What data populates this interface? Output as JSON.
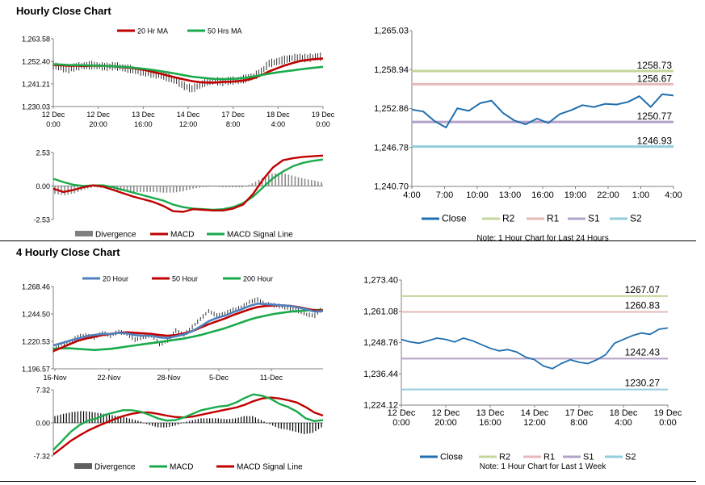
{
  "sections": {
    "hourly_title": "Hourly Close Chart",
    "four_hourly_title": "4 Hourly Close Chart"
  },
  "chart_data": [
    {
      "id": "hourly_price",
      "type": "line",
      "legend": [
        "20 Hr MA",
        "50 Hrs MA"
      ],
      "colors": {
        "price": "#000000",
        "ma1": "#c00000",
        "ma2": "#1aaa4b"
      },
      "y_ticks": [
        "1,263.58",
        "1,252.40",
        "1,241.21",
        "1,230.03"
      ],
      "ylim": [
        1230.03,
        1263.58
      ],
      "x_ticks": [
        [
          "12 Dec",
          "0:00"
        ],
        [
          "12 Dec",
          "20:00"
        ],
        [
          "13 Dec",
          "16:00"
        ],
        [
          "14 Dec",
          "12:00"
        ],
        [
          "17 Dec",
          "8:00"
        ],
        [
          "18 Dec",
          "4:00"
        ],
        [
          "19 Dec",
          "0:00"
        ]
      ],
      "price": [
        1250.5,
        1249.3,
        1248.5,
        1249.8,
        1250.2,
        1250.6,
        1250.0,
        1249.7,
        1250.1,
        1249.2,
        1248.6,
        1247.5,
        1246.9,
        1246.1,
        1245.4,
        1244.3,
        1242.6,
        1240.2,
        1238.8,
        1240.6,
        1242.4,
        1242.7,
        1242.2,
        1242.9,
        1242.9,
        1243.9,
        1245.0,
        1247.2,
        1251.4,
        1252.2,
        1253.2,
        1254.0,
        1254.1,
        1254.0,
        1254.6,
        1254.7
      ],
      "ma1": [
        1250.6,
        1250.4,
        1250.2,
        1250.2,
        1250.1,
        1250.2,
        1250.2,
        1250.1,
        1249.9,
        1249.5,
        1249.2,
        1248.7,
        1248.0,
        1247.1,
        1246.2,
        1245.2,
        1244.3,
        1243.4,
        1242.6,
        1242.1,
        1241.9,
        1241.9,
        1242.2,
        1242.3,
        1242.6,
        1243.1,
        1244.0,
        1245.6,
        1247.4,
        1248.9,
        1250.3,
        1251.5,
        1252.5,
        1253.1,
        1253.5,
        1253.8
      ],
      "ma2": [
        1250.9,
        1250.8,
        1250.6,
        1250.5,
        1250.4,
        1250.3,
        1250.2,
        1250.1,
        1249.9,
        1249.7,
        1249.4,
        1249.0,
        1248.6,
        1248.1,
        1247.5,
        1246.9,
        1246.2,
        1245.5,
        1244.8,
        1244.4,
        1244.0,
        1243.7,
        1243.6,
        1243.7,
        1243.9,
        1244.3,
        1244.9,
        1245.6,
        1246.3,
        1246.9,
        1247.4,
        1247.9,
        1248.4,
        1248.9,
        1249.3,
        1249.7
      ]
    },
    {
      "id": "hourly_macd",
      "type": "line",
      "legend": [
        "Divergence",
        "MACD",
        "MACD Signal Line"
      ],
      "colors": {
        "divergence": "#8c8c8c",
        "macd": "#c00000",
        "signal": "#1aaa4b"
      },
      "y_ticks": [
        "2.53",
        "0.00",
        "-2.53"
      ],
      "ylim": [
        -2.53,
        2.53
      ],
      "macd": [
        -0.2,
        -0.45,
        -0.3,
        -0.1,
        0.05,
        -0.05,
        -0.3,
        -0.55,
        -0.8,
        -1.0,
        -1.2,
        -1.5,
        -1.9,
        -1.95,
        -1.75,
        -1.8,
        -1.85,
        -1.85,
        -1.7,
        -1.4,
        -0.6,
        0.5,
        1.4,
        1.95,
        2.1,
        2.2,
        2.25,
        2.3
      ],
      "signal": [
        0.55,
        0.3,
        0.1,
        0.0,
        0.05,
        0.05,
        -0.1,
        -0.3,
        -0.5,
        -0.7,
        -0.9,
        -1.1,
        -1.4,
        -1.6,
        -1.7,
        -1.75,
        -1.8,
        -1.75,
        -1.6,
        -1.3,
        -0.8,
        -0.1,
        0.6,
        1.1,
        1.5,
        1.75,
        1.9,
        2.0
      ],
      "divergence": [
        -0.6,
        -0.7,
        -0.55,
        -0.25,
        -0.1,
        -0.15,
        -0.3,
        -0.4,
        -0.45,
        -0.45,
        -0.45,
        -0.5,
        -0.5,
        -0.4,
        -0.2,
        -0.1,
        -0.05,
        -0.1,
        -0.1,
        -0.1,
        0.2,
        0.6,
        0.95,
        1.0,
        0.8,
        0.6,
        0.45,
        0.3
      ]
    },
    {
      "id": "hourly_pivot",
      "type": "line",
      "legend": [
        "Close",
        "R2",
        "R1",
        "S1",
        "S2"
      ],
      "colors": {
        "close": "#1f6fb0",
        "R2": "#c3d69b",
        "R1": "#e6b9b8",
        "S1": "#b3a2c7",
        "S2": "#93cddd"
      },
      "y_ticks": [
        "1,265.03",
        "1,258.94",
        "1,252.86",
        "1,246.78",
        "1,240.70"
      ],
      "ylim": [
        1240.7,
        1265.03
      ],
      "x_ticks": [
        "4:00",
        "7:00",
        "10:00",
        "13:00",
        "16:00",
        "19:00",
        "22:00",
        "1:00",
        "4:00"
      ],
      "levels": {
        "R2": 1258.73,
        "R1": 1256.67,
        "S1": 1250.77,
        "S2": 1246.93
      },
      "level_labels": {
        "R2": "1258.73",
        "R1": "1256.67",
        "S1": "1250.77",
        "S2": "1246.93"
      },
      "close": [
        1252.7,
        1252.4,
        1250.9,
        1249.9,
        1252.9,
        1252.5,
        1253.7,
        1254.1,
        1252.2,
        1251.0,
        1250.4,
        1251.3,
        1250.6,
        1252.0,
        1252.6,
        1253.4,
        1253.1,
        1253.6,
        1253.5,
        1253.9,
        1254.8,
        1253.1,
        1255.1,
        1254.9
      ],
      "note": "Note: 1 Hour Chart for Last 24 Hours"
    },
    {
      "id": "four_hourly_price",
      "type": "line",
      "legend": [
        "20 Hour",
        "50 Hour",
        "200 Hour"
      ],
      "colors": {
        "price": "#000000",
        "ma20": "#4f81bd",
        "ma50": "#c00000",
        "ma200": "#1aaa4b"
      },
      "y_ticks": [
        "1,268.46",
        "1,244.50",
        "1,220.53",
        "1,196.57"
      ],
      "ylim": [
        1196.57,
        1268.46
      ],
      "x_ticks": [
        "16-Nov",
        "22-Nov",
        "28-Nov",
        "5-Dec",
        "11-Dec"
      ],
      "price": [
        1213.0,
        1218.0,
        1220.0,
        1224.5,
        1226.0,
        1224.0,
        1228.0,
        1225.5,
        1229.0,
        1227.0,
        1222.0,
        1224.0,
        1226.0,
        1218.0,
        1221.0,
        1230.0,
        1226.0,
        1233.0,
        1240.0,
        1247.0,
        1243.0,
        1245.0,
        1248.0,
        1250.0,
        1255.0,
        1257.0,
        1253.0,
        1252.0,
        1251.0,
        1249.0,
        1247.0,
        1244.0,
        1243.0,
        1250.0
      ],
      "ma20": [
        1217.0,
        1219.0,
        1221.0,
        1223.0,
        1225.0,
        1226.0,
        1227.0,
        1227.0,
        1228.0,
        1227.5,
        1226.0,
        1225.5,
        1225.5,
        1224.0,
        1223.5,
        1225.0,
        1226.5,
        1229.5,
        1233.5,
        1238.0,
        1241.0,
        1243.0,
        1246.0,
        1248.5,
        1251.5,
        1253.5,
        1253.0,
        1252.5,
        1252.0,
        1251.5,
        1250.0,
        1248.5,
        1246.5,
        1247.0
      ],
      "ma50": [
        1212.0,
        1215.0,
        1218.0,
        1221.0,
        1223.0,
        1224.5,
        1226.0,
        1227.0,
        1228.0,
        1228.5,
        1228.0,
        1227.5,
        1227.0,
        1226.0,
        1225.5,
        1226.0,
        1227.5,
        1229.5,
        1232.5,
        1235.5,
        1238.0,
        1240.5,
        1243.5,
        1246.0,
        1248.5,
        1250.5,
        1251.5,
        1252.0,
        1252.0,
        1251.5,
        1250.5,
        1249.0,
        1247.5,
        1247.5
      ],
      "ma200": [
        1214.0,
        1214.5,
        1214.5,
        1214.0,
        1213.5,
        1213.0,
        1213.5,
        1214.0,
        1215.0,
        1216.0,
        1217.0,
        1218.0,
        1219.0,
        1220.0,
        1221.0,
        1222.0,
        1223.0,
        1224.5,
        1226.0,
        1228.0,
        1230.0,
        1232.0,
        1234.5,
        1237.0,
        1239.5,
        1241.5,
        1243.0,
        1244.5,
        1245.5,
        1246.5,
        1247.0,
        1247.5,
        1248.0,
        1248.0
      ]
    },
    {
      "id": "four_hourly_macd",
      "type": "line",
      "legend": [
        "Divergence",
        "MACD",
        "MACD Signal Line"
      ],
      "colors": {
        "divergence": "#000000",
        "macd": "#1aaa4b",
        "signal": "#c00000"
      },
      "y_ticks": [
        "7.32",
        "0.00",
        "-7.32"
      ],
      "ylim": [
        -7.32,
        7.32
      ],
      "macd": [
        -6.0,
        -4.0,
        -2.0,
        -0.5,
        0.5,
        1.0,
        1.8,
        2.3,
        2.8,
        2.8,
        2.5,
        1.8,
        1.0,
        0.5,
        0.6,
        1.2,
        2.0,
        2.8,
        3.2,
        3.6,
        3.8,
        4.5,
        5.5,
        6.3,
        6.0,
        5.3,
        4.2,
        3.5,
        2.5,
        1.0,
        0.4,
        0.6
      ],
      "signal": [
        -7.0,
        -5.5,
        -4.0,
        -2.8,
        -1.7,
        -0.8,
        0.0,
        0.8,
        1.5,
        2.0,
        2.3,
        2.3,
        2.0,
        1.6,
        1.3,
        1.2,
        1.4,
        1.8,
        2.2,
        2.6,
        3.0,
        3.4,
        4.0,
        4.8,
        5.4,
        5.6,
        5.4,
        5.0,
        4.5,
        3.5,
        2.3,
        1.6
      ],
      "divergence": [
        1.5,
        2.0,
        2.4,
        2.6,
        2.5,
        2.2,
        1.9,
        1.6,
        1.3,
        0.8,
        0.3,
        -0.5,
        -1.0,
        -1.0,
        -0.6,
        0.1,
        0.6,
        1.0,
        1.0,
        1.0,
        0.8,
        1.0,
        1.5,
        1.5,
        0.6,
        -0.3,
        -1.2,
        -1.5,
        -2.0,
        -2.5,
        -2.2,
        -1.0
      ]
    },
    {
      "id": "four_hourly_pivot",
      "type": "line",
      "legend": [
        "Close",
        "R2",
        "R1",
        "S1",
        "S2"
      ],
      "colors": {
        "close": "#1f6fb0",
        "R2": "#c3d69b",
        "R1": "#e6b9b8",
        "S1": "#b3a2c7",
        "S2": "#93cddd"
      },
      "y_ticks": [
        "1,273.40",
        "1,261.08",
        "1,248.76",
        "1,236.44",
        "1,224.12"
      ],
      "ylim": [
        1224.12,
        1273.4
      ],
      "x_ticks": [
        [
          "12 Dec",
          "0:00"
        ],
        [
          "12 Dec",
          "20:00"
        ],
        [
          "13 Dec",
          "16:00"
        ],
        [
          "14 Dec",
          "12:00"
        ],
        [
          "17 Dec",
          "8:00"
        ],
        [
          "18 Dec",
          "4:00"
        ],
        [
          "19 Dec",
          "0:00"
        ]
      ],
      "levels": {
        "R2": 1267.07,
        "R1": 1260.83,
        "S1": 1242.43,
        "S2": 1230.27
      },
      "level_labels": {
        "R2": "1267.07",
        "R1": "1260.83",
        "S1": "1242.43",
        "S2": "1230.27"
      },
      "close": [
        1250.0,
        1249.0,
        1248.5,
        1249.5,
        1250.5,
        1250.0,
        1249.0,
        1250.5,
        1249.5,
        1248.0,
        1246.5,
        1245.5,
        1246.0,
        1245.0,
        1243.0,
        1242.0,
        1239.5,
        1238.5,
        1240.5,
        1242.0,
        1241.0,
        1240.5,
        1242.0,
        1244.0,
        1248.5,
        1250.0,
        1251.5,
        1252.5,
        1252.0,
        1254.0,
        1254.5
      ],
      "note": "Note: 1 Hour Chart for Last 1 Week"
    }
  ]
}
